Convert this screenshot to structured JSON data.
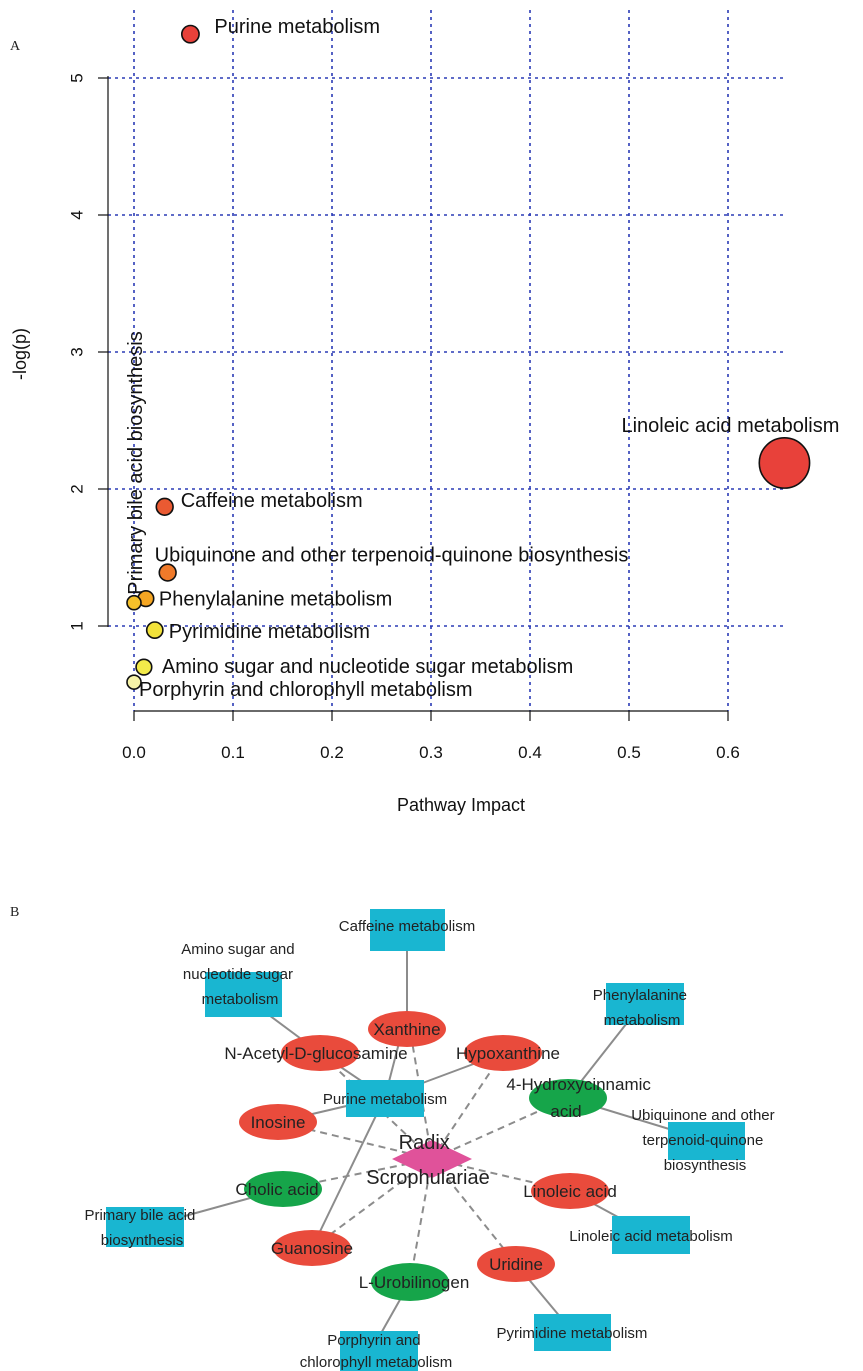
{
  "panels": {
    "a": "A",
    "b": "B"
  },
  "colors": {
    "grid": "#2b3bb5",
    "high": "#e8413a",
    "mid": "#f07a2a",
    "low_orange": "#f5a623",
    "yellow": "#f2e23a",
    "pale": "#f7f4a8",
    "red_node": "#e94b3c",
    "green_node": "#16a54a",
    "blue_node": "#19b6d1",
    "pink_node": "#e0529a",
    "edge": "#8c8c8c"
  },
  "chart_data": {
    "type": "scatter",
    "xlabel": "Pathway Impact",
    "ylabel": "-log(p)",
    "xlim": [
      -0.03,
      0.66
    ],
    "ylim": [
      0.6,
      5.3
    ],
    "xticks": [
      "0.0",
      "0.1",
      "0.2",
      "0.3",
      "0.4",
      "0.5",
      "0.6"
    ],
    "yticks": [
      "1",
      "2",
      "3",
      "4",
      "5"
    ],
    "grid": true,
    "points": [
      {
        "name": "Purine metabolism",
        "x": 0.057,
        "y": 5.32,
        "size": 0.06,
        "color": "#e8413a"
      },
      {
        "name": "Linoleic acid metabolism",
        "x": 0.657,
        "y": 2.19,
        "size": 0.66,
        "color": "#e8413a"
      },
      {
        "name": "Caffeine metabolism",
        "x": 0.031,
        "y": 1.87,
        "size": 0.05,
        "color": "#ea5a32"
      },
      {
        "name": "Ubiquinone and other terpenoid-quinone biosynthesis",
        "x": 0.034,
        "y": 1.39,
        "size": 0.05,
        "color": "#f07a2a"
      },
      {
        "name": "Phenylalanine metabolism",
        "x": 0.012,
        "y": 1.2,
        "size": 0.03,
        "color": "#f5a623"
      },
      {
        "name": "Primary bile acid biosynthesis",
        "x": 0.0,
        "y": 1.17,
        "size": 0.0,
        "color": "#f5c02a"
      },
      {
        "name": "Pyrimidine metabolism",
        "x": 0.021,
        "y": 0.97,
        "size": 0.04,
        "color": "#f2e23a"
      },
      {
        "name": "Amino sugar and nucleotide sugar metabolism",
        "x": 0.01,
        "y": 0.7,
        "size": 0.03,
        "color": "#f2ea4a"
      },
      {
        "name": "Porphyrin and chlorophyll metabolism",
        "x": 0.0,
        "y": 0.59,
        "size": 0.0,
        "color": "#f7f4a8"
      }
    ]
  },
  "network": {
    "hub": {
      "line1": "Radix",
      "line2": "Scrophulariae"
    },
    "metabolites": {
      "xanthine": "Xanthine",
      "hypoxanthine": "Hypoxanthine",
      "nacetyl": "N-Acetyl-D-glucosamine",
      "inosine": "Inosine",
      "hydroxycinnamic": {
        "line1": "4-Hydroxycinnamic",
        "line2": "acid"
      },
      "cholic": "Cholic acid",
      "linoleic": "Linoleic acid",
      "guanosine": "Guanosine",
      "urobilinogen": "L-Urobilinogen",
      "uridine": "Uridine"
    },
    "pathways": {
      "caffeine": "Caffeine metabolism",
      "amino_sugar": [
        "Amino sugar and",
        "nucleotide sugar",
        "metabolism"
      ],
      "phenylalanine": [
        "Phenylalanine",
        "metabolism"
      ],
      "purine": "Purine metabolism",
      "ubiquinone": [
        "Ubiquinone and other",
        "terpenoid-quinone",
        "biosynthesis"
      ],
      "bile": [
        "Primary bile acid",
        "biosynthesis"
      ],
      "linoleic_pw": "Linoleic acid metabolism",
      "pyrimidine": "Pyrimidine metabolism",
      "porphyrin": [
        "Porphyrin and",
        "chlorophyll metabolism"
      ]
    }
  }
}
